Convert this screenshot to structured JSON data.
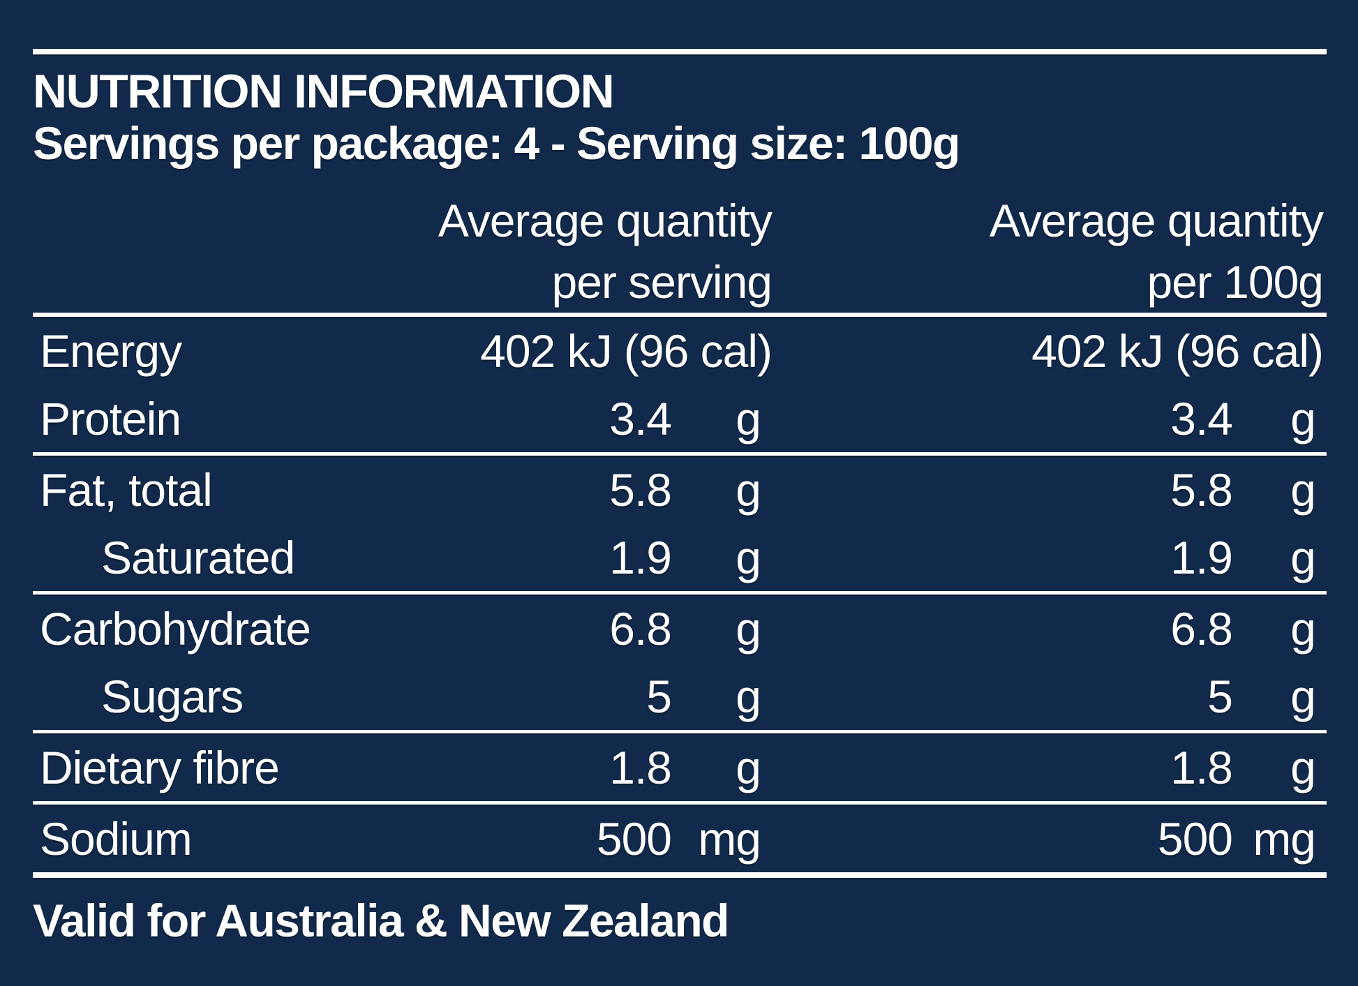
{
  "panel": {
    "title": "NUTRITION INFORMATION",
    "servings_line": "Servings per package: 4 - Serving size: 100g",
    "column_headers": {
      "per_serving": {
        "line1": "Average quantity",
        "line2": "per serving"
      },
      "per_100g": {
        "line1": "Average quantity",
        "line2": "per 100g"
      }
    },
    "rows": [
      {
        "label": "Energy",
        "indent": false,
        "span": true,
        "per_serving_value": "402 kJ (96 cal)",
        "per_serving_unit": "",
        "per_100g_value": "402 kJ (96 cal)",
        "per_100g_unit": "",
        "divider_after": "none"
      },
      {
        "label": "Protein",
        "indent": false,
        "span": false,
        "per_serving_value": "3.4",
        "per_serving_unit": "g",
        "per_100g_value": "3.4",
        "per_100g_unit": "g",
        "divider_after": "thin"
      },
      {
        "label": "Fat, total",
        "indent": false,
        "span": false,
        "per_serving_value": "5.8",
        "per_serving_unit": "g",
        "per_100g_value": "5.8",
        "per_100g_unit": "g",
        "divider_after": "none"
      },
      {
        "label": "Saturated",
        "indent": true,
        "span": false,
        "per_serving_value": "1.9",
        "per_serving_unit": "g",
        "per_100g_value": "1.9",
        "per_100g_unit": "g",
        "divider_after": "thin"
      },
      {
        "label": "Carbohydrate",
        "indent": false,
        "span": false,
        "per_serving_value": "6.8",
        "per_serving_unit": "g",
        "per_100g_value": "6.8",
        "per_100g_unit": "g",
        "divider_after": "none"
      },
      {
        "label": "Sugars",
        "indent": true,
        "span": false,
        "per_serving_value": "5",
        "per_serving_unit": "g",
        "per_100g_value": "5",
        "per_100g_unit": "g",
        "divider_after": "thin"
      },
      {
        "label": "Dietary fibre",
        "indent": false,
        "span": false,
        "per_serving_value": "1.8",
        "per_serving_unit": "g",
        "per_100g_value": "1.8",
        "per_100g_unit": "g",
        "divider_after": "thin"
      },
      {
        "label": "Sodium",
        "indent": false,
        "span": false,
        "per_serving_value": "500",
        "per_serving_unit": "mg",
        "per_100g_value": "500",
        "per_100g_unit": "mg",
        "divider_after": "thick"
      }
    ],
    "footer": "Valid for Australia & New Zealand",
    "colors": {
      "background": "#112a4b",
      "text": "#ffffff",
      "rule": "#ffffff"
    }
  }
}
